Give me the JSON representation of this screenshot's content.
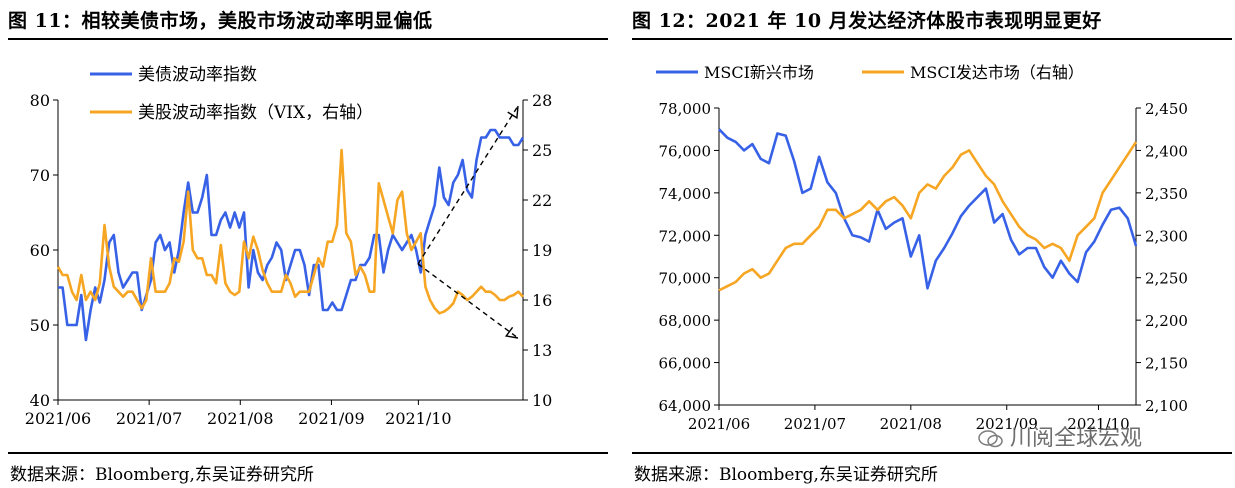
{
  "colors": {
    "blue": "#3761E6",
    "orange": "#F6A623",
    "arrow": "#000000"
  },
  "left_panel": {
    "title": "图 11：相较美债市场，美股市场波动率明显偏低",
    "source": "数据来源：Bloomberg,东吴证券研究所"
  },
  "right_panel": {
    "title": "图 12：2021 年 10 月发达经济体股市表现明显更好",
    "source": "数据来源：Bloomberg,东吴证券研究所"
  },
  "watermark": {
    "text": "川阅全球宏观",
    "icon": "wechat-icon"
  },
  "chart_data": [
    {
      "type": "line",
      "x_tick_labels": [
        "2021/06",
        "2021/07",
        "2021/08",
        "2021/09",
        "2021/10"
      ],
      "x_range": [
        0,
        100
      ],
      "x_ticks": [
        0,
        19.6,
        39.2,
        58.8,
        77.5
      ],
      "yleft": {
        "range": [
          40,
          80
        ],
        "ticks": [
          40,
          50,
          60,
          70,
          80
        ]
      },
      "yright": {
        "range": [
          10,
          28
        ],
        "ticks": [
          10,
          13,
          16,
          19,
          22,
          25,
          28
        ]
      },
      "legend_position": "top-left",
      "grid": false,
      "annotations": [
        "dashed arrow up-right",
        "dashed arrow down-right"
      ],
      "series": [
        {
          "name": "美债波动率指数",
          "color": "#3761E6",
          "axis": "left",
          "x": [
            0,
            1,
            2,
            3,
            4,
            5,
            6,
            7,
            8,
            9,
            10,
            11,
            12,
            13,
            14,
            15,
            16,
            17,
            18,
            19,
            20,
            21,
            22,
            23,
            24,
            25,
            26,
            27,
            28,
            29,
            30,
            31,
            32,
            33,
            34,
            35,
            36,
            37,
            38,
            39,
            40,
            41,
            42,
            43,
            44,
            45,
            46,
            47,
            48,
            49,
            50,
            51,
            52,
            53,
            54,
            55,
            56,
            57,
            58,
            59,
            60,
            61,
            62,
            63,
            64,
            65,
            66,
            67,
            68,
            69,
            70,
            71,
            72,
            73,
            74,
            75,
            76,
            77,
            78,
            79,
            80,
            81,
            82,
            83,
            84,
            85,
            86,
            87,
            88,
            89,
            90,
            91,
            92,
            93,
            94,
            95,
            96,
            97,
            98,
            99,
            100
          ],
          "values": [
            55,
            55,
            50,
            50,
            50,
            54,
            48,
            52,
            55,
            53,
            56,
            61,
            62,
            57,
            55,
            56,
            57,
            57,
            52,
            54,
            56,
            61,
            62,
            60,
            61,
            57,
            60,
            65,
            69,
            65,
            65,
            67,
            70,
            62,
            62,
            64,
            65,
            63,
            65,
            63,
            65,
            55,
            60,
            57,
            56,
            58,
            59,
            61,
            60,
            56,
            58,
            60,
            60,
            58,
            54,
            58,
            58,
            52,
            52,
            53,
            52,
            52,
            54,
            56,
            56,
            58,
            58,
            59,
            62,
            62,
            57,
            60,
            62,
            61,
            60,
            61,
            62,
            60,
            57,
            62,
            64,
            66,
            71,
            67,
            66,
            69,
            70,
            72,
            68,
            67,
            72,
            75,
            75,
            76,
            76,
            75,
            75,
            75,
            74,
            74,
            75
          ]
        },
        {
          "name": "美股波动率指数（VIX，右轴）",
          "color": "#F6A623",
          "axis": "right",
          "x": [
            0,
            1,
            2,
            3,
            4,
            5,
            6,
            7,
            8,
            9,
            10,
            11,
            12,
            13,
            14,
            15,
            16,
            17,
            18,
            19,
            20,
            21,
            22,
            23,
            24,
            25,
            26,
            27,
            28,
            29,
            30,
            31,
            32,
            33,
            34,
            35,
            36,
            37,
            38,
            39,
            40,
            41,
            42,
            43,
            44,
            45,
            46,
            47,
            48,
            49,
            50,
            51,
            52,
            53,
            54,
            55,
            56,
            57,
            58,
            59,
            60,
            61,
            62,
            63,
            64,
            65,
            66,
            67,
            68,
            69,
            70,
            71,
            72,
            73,
            74,
            75,
            76,
            77,
            78,
            79,
            80,
            81,
            82,
            83,
            84,
            85,
            86,
            87,
            88,
            89,
            90,
            91,
            92,
            93,
            94,
            95,
            96,
            97,
            98,
            99,
            100
          ],
          "values": [
            18,
            17.5,
            17.5,
            16.5,
            16,
            17.5,
            16,
            16.5,
            16,
            17,
            20.5,
            18,
            16.8,
            16.5,
            16.2,
            16.5,
            16.5,
            16,
            15.5,
            16,
            18.5,
            16.5,
            16.5,
            16.5,
            17,
            18.5,
            18.3,
            19.5,
            22.5,
            19,
            18.5,
            18.5,
            17.5,
            17.5,
            17,
            19.3,
            17,
            16.5,
            16.3,
            16.5,
            19.5,
            18.5,
            19.8,
            19,
            17.8,
            17,
            16.5,
            16.5,
            16.5,
            17.5,
            17,
            16.2,
            16.5,
            16.5,
            16.5,
            17.5,
            18.5,
            18,
            19.5,
            19.5,
            20.5,
            25,
            20,
            19.5,
            17.5,
            18,
            17.5,
            16.5,
            16.5,
            23,
            22,
            21,
            20,
            22,
            22.5,
            20,
            19,
            19.5,
            20,
            16.8,
            16,
            15.5,
            15.2,
            15.3,
            15.5,
            15.8,
            16.5,
            16.3,
            16,
            16.2,
            16.5,
            16.8,
            16.5,
            16.5,
            16.3,
            16,
            16,
            16.2,
            16.3,
            16.5,
            16.2
          ]
        }
      ]
    },
    {
      "type": "line",
      "x_tick_labels": [
        "2021/06",
        "2021/07",
        "2021/08",
        "2021/09",
        "2021/10"
      ],
      "x_range": [
        0,
        100
      ],
      "x_ticks": [
        0,
        23,
        46,
        69,
        91
      ],
      "yleft": {
        "range": [
          64000,
          78000
        ],
        "ticks": [
          "64,000",
          "66,000",
          "68,000",
          "70,000",
          "72,000",
          "74,000",
          "76,000",
          "78,000"
        ]
      },
      "yright": {
        "range": [
          2100,
          2450
        ],
        "ticks": [
          "2,100",
          "2,150",
          "2,200",
          "2,250",
          "2,300",
          "2,350",
          "2,400",
          "2,450"
        ]
      },
      "legend_position": "top",
      "grid": false,
      "series": [
        {
          "name": "MSCI新兴市场",
          "color": "#3761E6",
          "axis": "left",
          "x": [
            0,
            2,
            4,
            6,
            8,
            10,
            12,
            14,
            16,
            18,
            20,
            22,
            24,
            26,
            28,
            30,
            32,
            34,
            36,
            38,
            40,
            42,
            44,
            46,
            48,
            50,
            52,
            54,
            56,
            58,
            60,
            62,
            64,
            66,
            68,
            70,
            72,
            74,
            76,
            78,
            80,
            82,
            84,
            86,
            88,
            90,
            92,
            94,
            96,
            98,
            100
          ],
          "values": [
            77000,
            76600,
            76400,
            76000,
            76300,
            75600,
            75400,
            76800,
            76700,
            75500,
            74000,
            74200,
            75700,
            74500,
            74000,
            72800,
            72000,
            71900,
            71700,
            73200,
            72300,
            72600,
            72800,
            71000,
            72000,
            69500,
            70800,
            71400,
            72100,
            72900,
            73400,
            73800,
            74200,
            72600,
            73000,
            71800,
            71100,
            71400,
            71400,
            70500,
            70000,
            70800,
            70200,
            69800,
            71200,
            71700,
            72500,
            73200,
            73300,
            72800,
            71500
          ]
        },
        {
          "name": "MSCI发达市场（右轴）",
          "color": "#F6A623",
          "axis": "right",
          "x": [
            0,
            2,
            4,
            6,
            8,
            10,
            12,
            14,
            16,
            18,
            20,
            22,
            24,
            26,
            28,
            30,
            32,
            34,
            36,
            38,
            40,
            42,
            44,
            46,
            48,
            50,
            52,
            54,
            56,
            58,
            60,
            62,
            64,
            66,
            68,
            70,
            72,
            74,
            76,
            78,
            80,
            82,
            84,
            86,
            88,
            90,
            92,
            94,
            96,
            98,
            100
          ],
          "values": [
            2235,
            2240,
            2245,
            2255,
            2260,
            2250,
            2255,
            2270,
            2285,
            2290,
            2290,
            2300,
            2310,
            2330,
            2330,
            2320,
            2325,
            2330,
            2340,
            2330,
            2340,
            2345,
            2335,
            2320,
            2350,
            2360,
            2355,
            2370,
            2380,
            2395,
            2400,
            2385,
            2370,
            2360,
            2340,
            2325,
            2310,
            2300,
            2295,
            2285,
            2290,
            2285,
            2270,
            2300,
            2310,
            2320,
            2350,
            2365,
            2380,
            2395,
            2410
          ]
        }
      ]
    }
  ]
}
